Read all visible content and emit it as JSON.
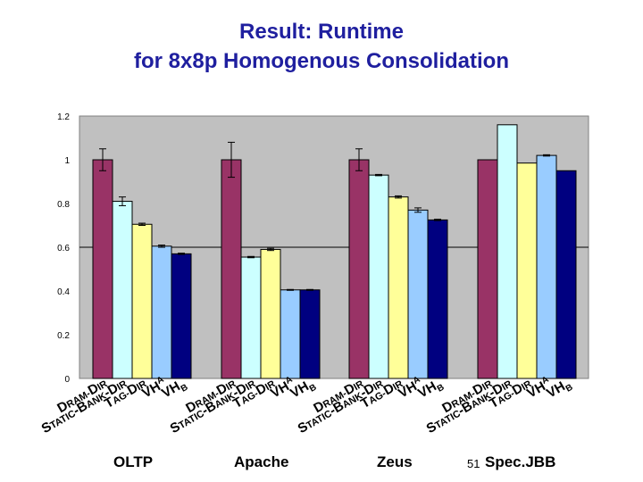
{
  "slide": {
    "title_line1": "Result:  Runtime",
    "title_line2": "for 8x8p Homogenous Consolidation",
    "slide_number": "51"
  },
  "chart_data": {
    "type": "bar",
    "title": "Result:  Runtime for 8x8p Homogenous Consolidation",
    "ylabel": "",
    "xlabel": "",
    "ylim": [
      0,
      1.2
    ],
    "yticks": [
      "0",
      "0.2",
      "0.4",
      "0.6",
      "0.8",
      "1",
      "1.2"
    ],
    "categories": [
      "OLTP",
      "Apache",
      "Zeus",
      "Spec.JBB"
    ],
    "series": [
      {
        "name": "DRAM-DIR",
        "label_parts": [
          [
            "D",
            ""
          ],
          [
            "RAM",
            "s"
          ],
          [
            "-",
            "s"
          ],
          [
            "D",
            ""
          ],
          [
            "IR",
            "s"
          ]
        ],
        "color": "#993366",
        "values": [
          1.0,
          1.0,
          1.0,
          1.0
        ]
      },
      {
        "name": "STATIC-BANK-DIR",
        "label_parts": [
          [
            "S",
            ""
          ],
          [
            "TATIC",
            "s"
          ],
          [
            "-",
            ""
          ],
          [
            "B",
            ""
          ],
          [
            "ANK",
            "s"
          ],
          [
            "-",
            ""
          ],
          [
            "D",
            ""
          ],
          [
            "IR",
            "s"
          ]
        ],
        "color": "#ccffff",
        "values": [
          0.81,
          0.555,
          0.93,
          1.16
        ]
      },
      {
        "name": "TAG-DIR",
        "label_parts": [
          [
            "T",
            ""
          ],
          [
            "AG",
            "s"
          ],
          [
            "-",
            "s"
          ],
          [
            "D",
            ""
          ],
          [
            "IR",
            "s"
          ]
        ],
        "color": "#ffff99",
        "values": [
          0.705,
          0.59,
          0.83,
          0.985
        ]
      },
      {
        "name": "VHA",
        "label_parts": [
          [
            "VH",
            ""
          ],
          [
            "A",
            "sup"
          ]
        ],
        "color": "#99ccff",
        "values": [
          0.605,
          0.405,
          0.77,
          1.02
        ]
      },
      {
        "name": "VHB",
        "label_parts": [
          [
            "VH",
            ""
          ],
          [
            "B",
            "sub"
          ]
        ],
        "color": "#000080",
        "values": [
          0.57,
          0.405,
          0.725,
          0.95
        ]
      }
    ],
    "error_bars": [
      [
        0.05,
        0.02,
        0.005,
        0.005,
        0.003
      ],
      [
        0.08,
        0.003,
        0.005,
        0.002,
        0.002
      ],
      [
        0.05,
        0.003,
        0.005,
        0.01,
        0.003
      ],
      [
        0.0,
        0.0,
        0.0,
        0.003,
        0.0
      ]
    ],
    "grid": false,
    "legend": "none"
  }
}
